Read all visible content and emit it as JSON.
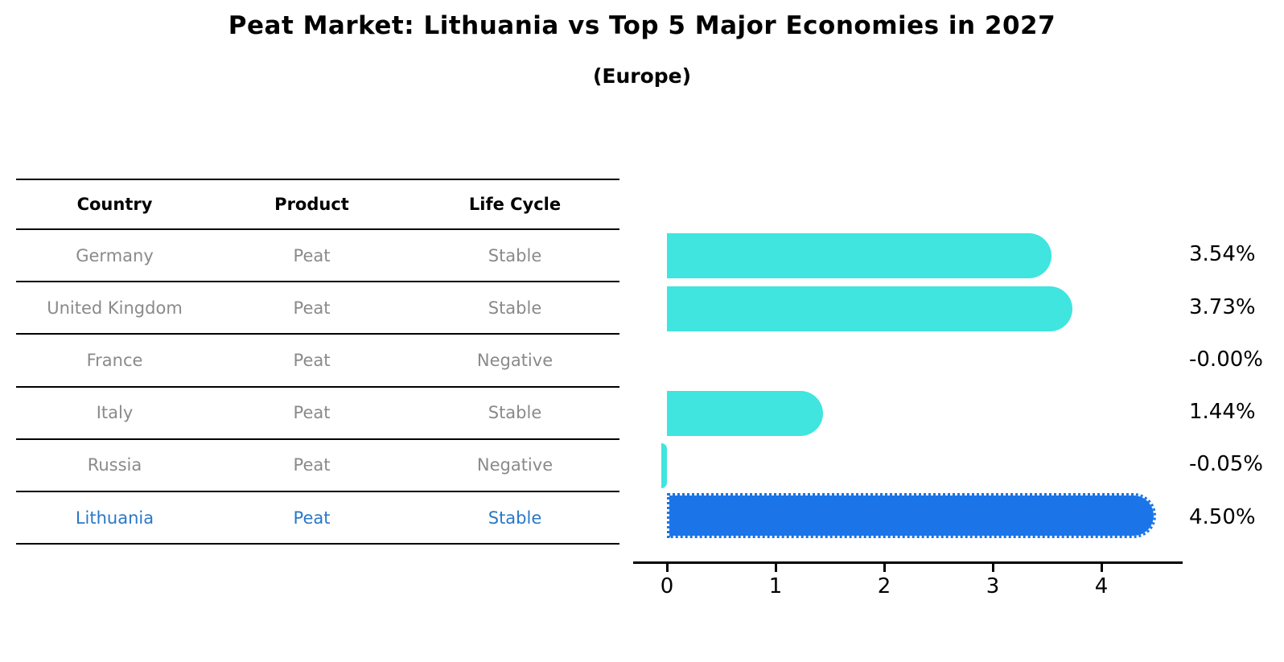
{
  "title": "Peat Market: Lithuania vs Top 5 Major Economies in 2027",
  "subtitle": "(Europe)",
  "table": {
    "headers": [
      "Country",
      "Product",
      "Life Cycle"
    ],
    "rows": [
      {
        "country": "Germany",
        "product": "Peat",
        "life_cycle": "Stable",
        "highlight": false
      },
      {
        "country": "United Kingdom",
        "product": "Peat",
        "life_cycle": "Stable",
        "highlight": false
      },
      {
        "country": "France",
        "product": "Peat",
        "life_cycle": "Negative",
        "highlight": false
      },
      {
        "country": "Italy",
        "product": "Peat",
        "life_cycle": "Stable",
        "highlight": false
      },
      {
        "country": "Russia",
        "product": "Peat",
        "life_cycle": "Negative",
        "highlight": false
      },
      {
        "country": "Lithuania",
        "product": "Peat",
        "life_cycle": "Stable",
        "highlight": true
      }
    ]
  },
  "chart_data": {
    "type": "bar",
    "orientation": "horizontal",
    "categories": [
      "Germany",
      "United Kingdom",
      "France",
      "Italy",
      "Russia",
      "Lithuania"
    ],
    "values": [
      3.54,
      3.73,
      -0.0,
      1.44,
      -0.05,
      4.5
    ],
    "value_labels": [
      "3.54%",
      "3.73%",
      "-0.00%",
      "1.44%",
      "-0.05%",
      "4.50%"
    ],
    "xticks": [
      "0",
      "1",
      "2",
      "3",
      "4"
    ],
    "xlim": [
      0,
      4.73
    ],
    "grid": false,
    "legend": "none",
    "bar_color": "#3FE5DE",
    "highlight_color": "#1B75E8",
    "highlight_index": 5,
    "highlight_text_color": "#2878C8"
  }
}
